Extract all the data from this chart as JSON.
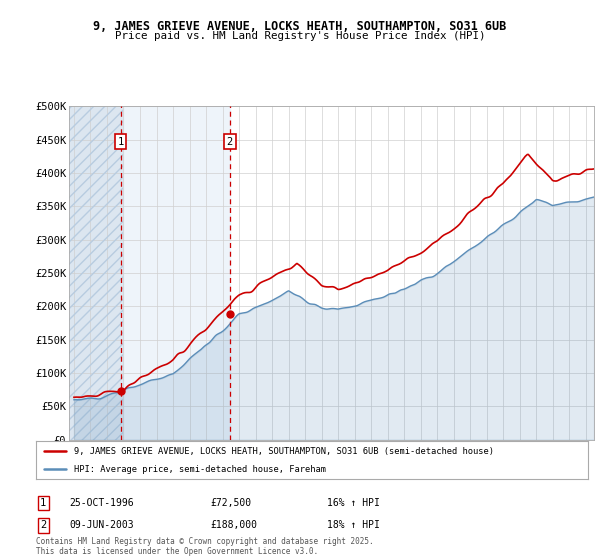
{
  "title_line1": "9, JAMES GRIEVE AVENUE, LOCKS HEATH, SOUTHAMPTON, SO31 6UB",
  "title_line2": "Price paid vs. HM Land Registry's House Price Index (HPI)",
  "ylim": [
    0,
    500000
  ],
  "yticks": [
    0,
    50000,
    100000,
    150000,
    200000,
    250000,
    300000,
    350000,
    400000,
    450000,
    500000
  ],
  "ytick_labels": [
    "£0",
    "£50K",
    "£100K",
    "£150K",
    "£200K",
    "£250K",
    "£300K",
    "£350K",
    "£400K",
    "£450K",
    "£500K"
  ],
  "hpi_color": "#5b8db8",
  "price_color": "#cc0000",
  "sale1_date": 1996.82,
  "sale1_price": 72500,
  "sale2_date": 2003.44,
  "sale2_price": 188000,
  "legend_label1": "9, JAMES GRIEVE AVENUE, LOCKS HEATH, SOUTHAMPTON, SO31 6UB (semi-detached house)",
  "legend_label2": "HPI: Average price, semi-detached house, Fareham",
  "footer": "Contains HM Land Registry data © Crown copyright and database right 2025.\nThis data is licensed under the Open Government Licence v3.0.",
  "hatch_end_year": 1997.0,
  "xmin": 1994.0,
  "xmax": 2025.5
}
